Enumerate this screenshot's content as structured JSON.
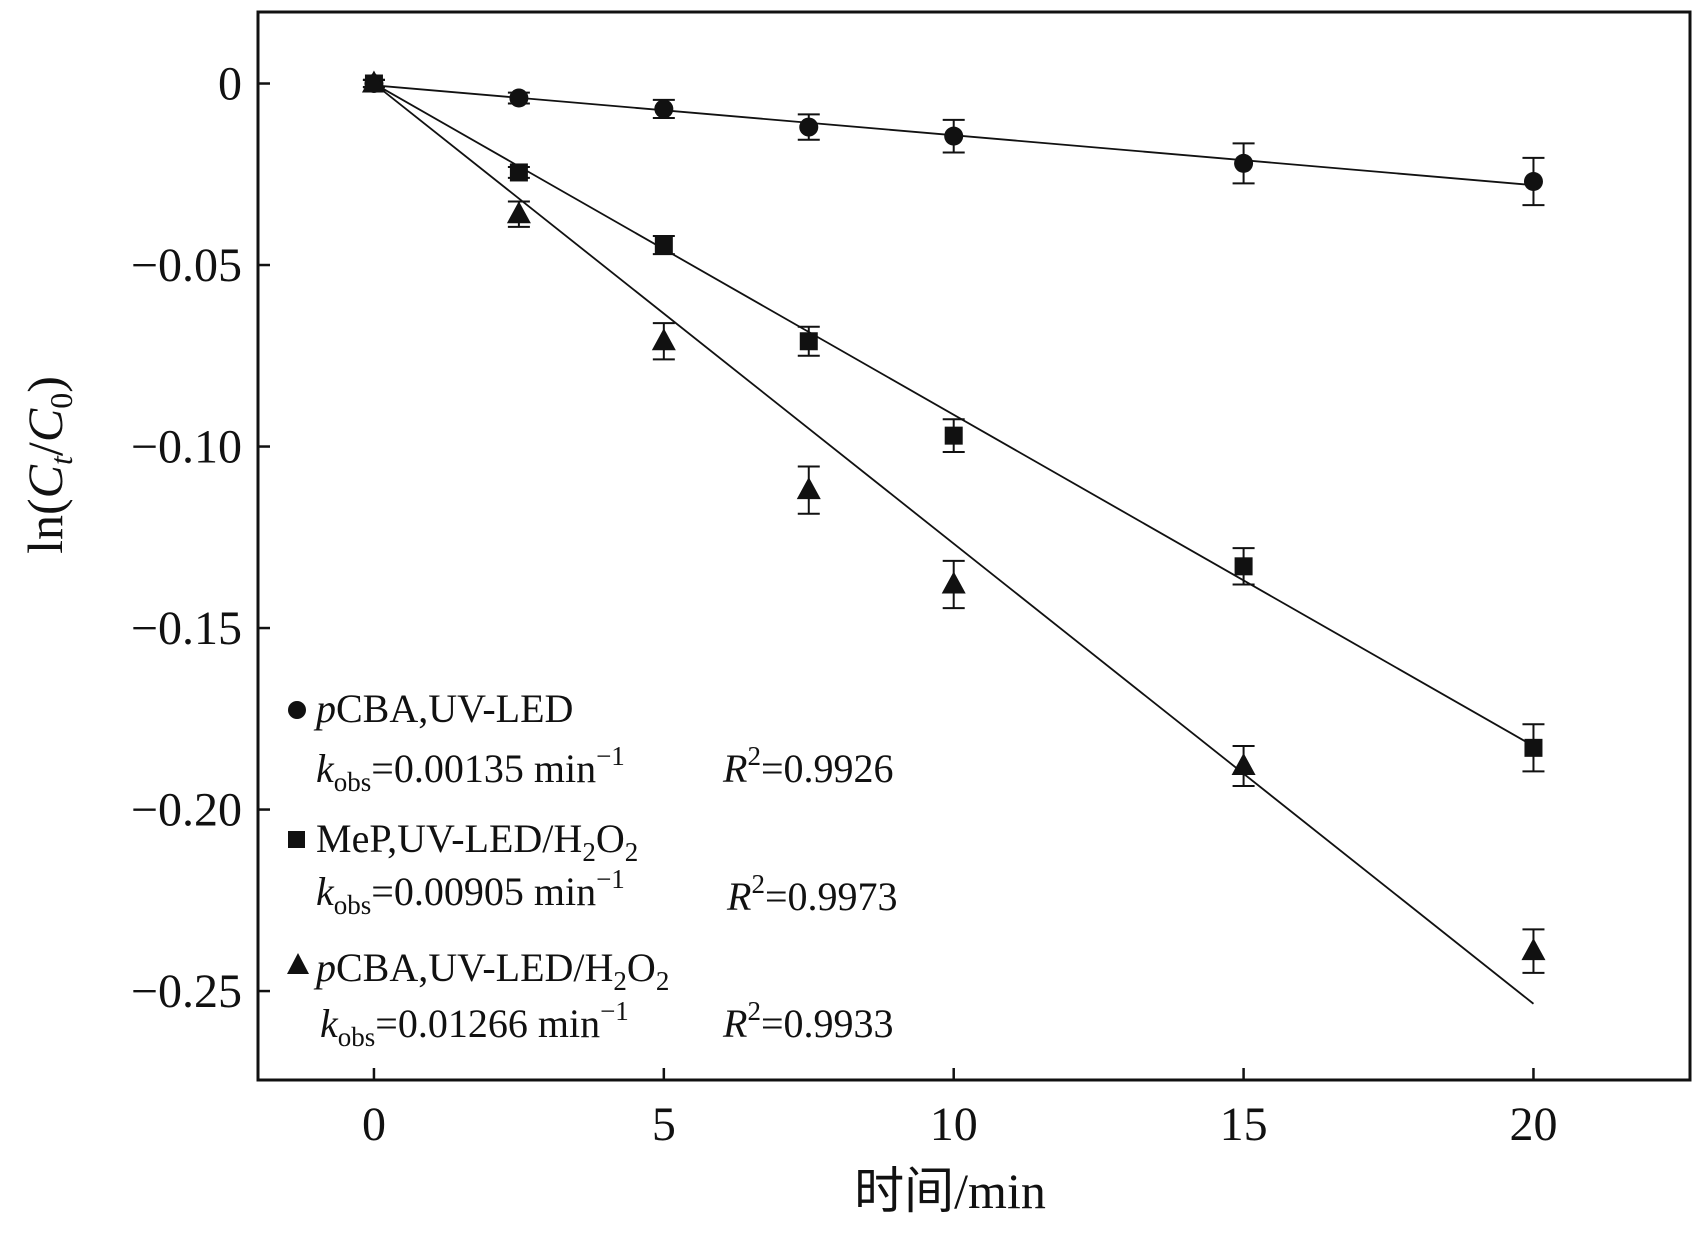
{
  "chart_data": {
    "type": "scatter",
    "xlabel": "时间/min",
    "ylabel": {
      "prefix": "ln(",
      "c1": "C",
      "c1_sub": "t",
      "slash": "/",
      "c2": "C",
      "c2_sub": "0",
      "suffix": ")"
    },
    "xlim": [
      -2,
      22.7
    ],
    "ylim": [
      -0.2745,
      0.0197
    ],
    "x_ticks": [
      0,
      5,
      10,
      15,
      20
    ],
    "x_tick_labels": [
      "0",
      "5",
      "10",
      "15",
      "20"
    ],
    "y_ticks": [
      0,
      -0.05,
      -0.1,
      -0.15,
      -0.2,
      -0.25
    ],
    "y_tick_labels": [
      "0",
      "−0.05",
      "−0.10",
      "−0.15",
      "−0.20",
      "−0.25"
    ],
    "grid": false,
    "legend_position": "bottom-left",
    "series": [
      {
        "marker": "circle",
        "x": [
          0,
          2.5,
          5,
          7.5,
          10,
          15,
          20
        ],
        "y": [
          0,
          -0.004,
          -0.007,
          -0.012,
          -0.0145,
          -0.022,
          -0.027
        ],
        "yerr": [
          0.001,
          0.0015,
          0.0025,
          0.0035,
          0.0045,
          0.0055,
          0.0065
        ],
        "fit_line": [
          [
            0,
            -0.0005
          ],
          [
            20,
            -0.028
          ]
        ],
        "legend": {
          "name_italic": "p",
          "name": "CBA,UV-LED",
          "k_value": "=0.00135 min",
          "r2_value": "=0.9926"
        }
      },
      {
        "marker": "square",
        "x": [
          0,
          2.5,
          5,
          7.5,
          10,
          15,
          20
        ],
        "y": [
          0,
          -0.0245,
          -0.0445,
          -0.071,
          -0.097,
          -0.133,
          -0.183
        ],
        "yerr": [
          0.001,
          0.0015,
          0.0025,
          0.004,
          0.0045,
          0.005,
          0.0065
        ],
        "fit_line": [
          [
            0,
            0
          ],
          [
            20,
            -0.1825
          ]
        ],
        "legend": {
          "name_italic": "",
          "name": "MeP,UV-LED/H",
          "k_value": "=0.00905 min",
          "r2_value": "=0.9973"
        }
      },
      {
        "marker": "triangle",
        "x": [
          0,
          2.5,
          5,
          7.5,
          10,
          15,
          20
        ],
        "y": [
          0,
          -0.036,
          -0.071,
          -0.112,
          -0.138,
          -0.188,
          -0.239
        ],
        "yerr": [
          0.001,
          0.0035,
          0.005,
          0.0065,
          0.0065,
          0.0055,
          0.006
        ],
        "fit_line": [
          [
            0,
            0
          ],
          [
            20,
            -0.2535
          ]
        ],
        "legend": {
          "name_italic": "p",
          "name": "CBA,UV-LED/H",
          "k_value": "=0.01266 min",
          "r2_value": "=0.9933"
        }
      }
    ],
    "legend_common": {
      "k_letter": "k",
      "k_sub": "obs",
      "min_sup": "−1",
      "r_letter": "R",
      "r_sup": "2",
      "h2o2_sub": "2",
      "o_letter": "O",
      "o_sub": "2"
    },
    "colors": {
      "ink": "#111111",
      "background": "#ffffff"
    }
  }
}
